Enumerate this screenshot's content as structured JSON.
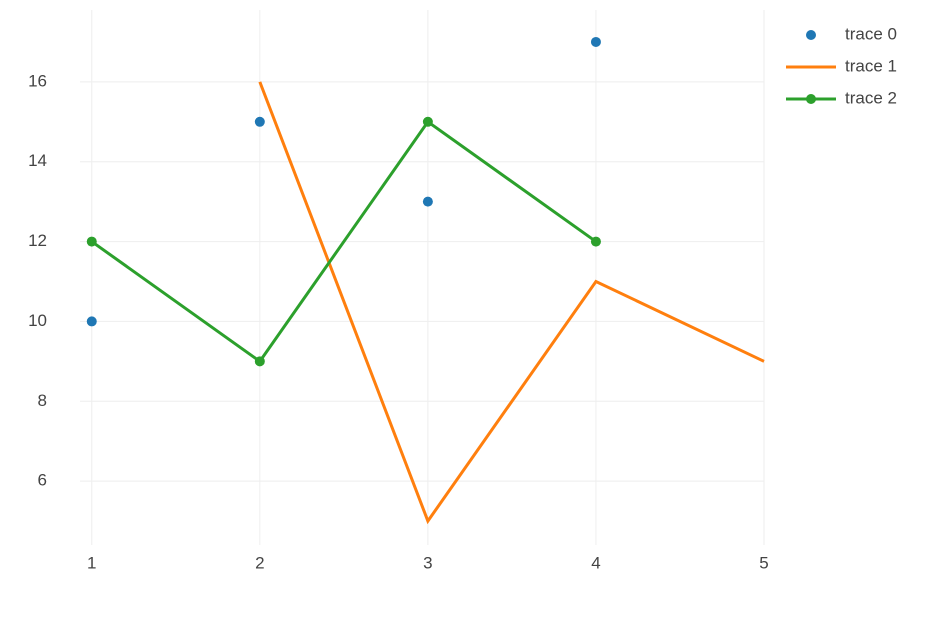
{
  "chart_data": {
    "type": "line",
    "series": [
      {
        "name": "trace 0",
        "mode": "markers",
        "color": "#1f77b4",
        "x": [
          1,
          2,
          3,
          4
        ],
        "values": [
          10,
          15,
          13,
          17
        ]
      },
      {
        "name": "trace 1",
        "mode": "lines",
        "color": "#ff7f0e",
        "x": [
          2,
          3,
          4,
          5
        ],
        "values": [
          16,
          5,
          11,
          9
        ]
      },
      {
        "name": "trace 2",
        "mode": "lines+markers",
        "color": "#2ca02c",
        "x": [
          1,
          2,
          3,
          4
        ],
        "values": [
          12,
          9,
          15,
          12
        ]
      }
    ],
    "xlim": [
      0.93,
      5
    ],
    "xticks": [
      1,
      2,
      3,
      4,
      5
    ],
    "ylim": [
      4.4,
      17.8
    ],
    "yticks": [
      6,
      8,
      10,
      12,
      14,
      16
    ],
    "grid": true,
    "legend": "top-right"
  }
}
